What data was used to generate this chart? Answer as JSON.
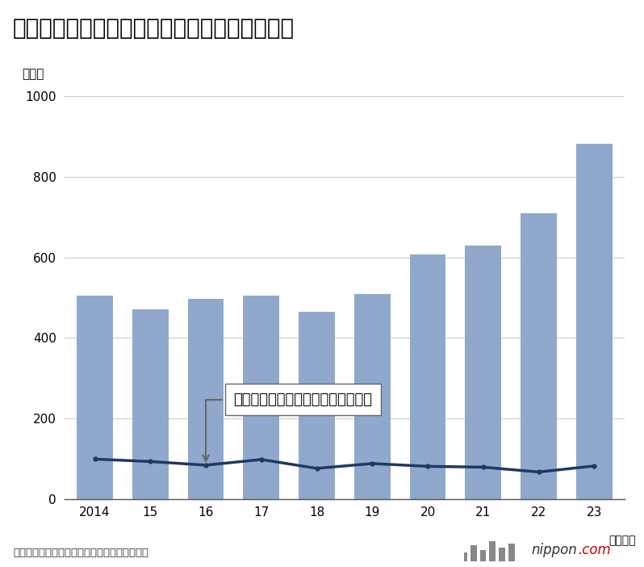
{
  "title": "精神障害での労災支給決定（認定）件数の推移",
  "ylabel": "（件）",
  "xlabel_suffix": "（年度）",
  "years": [
    "2014",
    "15",
    "16",
    "17",
    "18",
    "19",
    "20",
    "21",
    "22",
    "23"
  ],
  "bar_values": [
    506,
    472,
    498,
    506,
    465,
    509,
    608,
    629,
    710,
    883
  ],
  "line_values": [
    99,
    93,
    84,
    98,
    76,
    88,
    81,
    79,
    67,
    82
  ],
  "bar_color": "#8fa8cc",
  "line_color": "#1f3864",
  "ylim": [
    0,
    1000
  ],
  "yticks": [
    0,
    200,
    400,
    600,
    800,
    1000
  ],
  "annotation_text": "うち自殺（未遂を含む）に係るもの",
  "annotation_arrow_year_idx": 2,
  "annotation_arrow_value": 84,
  "source_text": "出所：厚生労働省「過労死等の労災補償状況」",
  "background_color": "#ffffff",
  "grid_color": "#cccccc",
  "title_fontsize": 20,
  "axis_fontsize": 12,
  "annotation_fontsize": 13
}
